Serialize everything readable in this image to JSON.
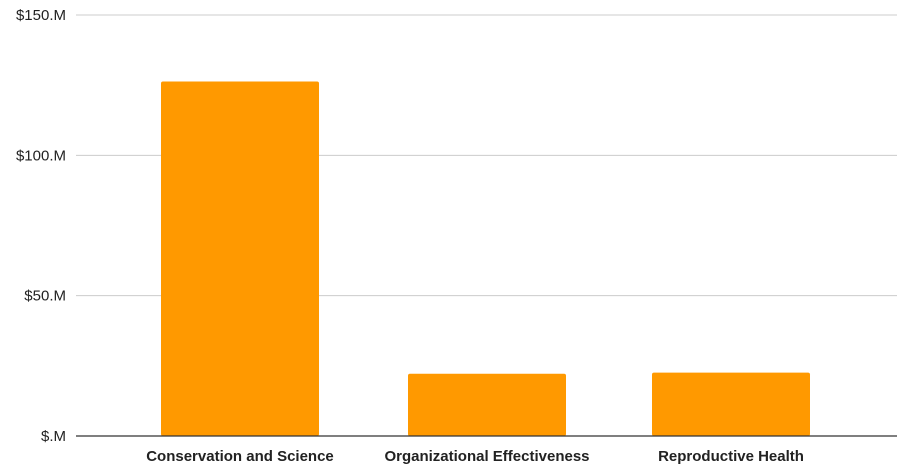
{
  "chart_data": {
    "type": "bar",
    "title": "",
    "xlabel": "",
    "ylabel": "",
    "categories": [
      "Conservation and Science",
      "Organizational Effectiveness",
      "Reproductive Health"
    ],
    "values": [
      126.3,
      22.2,
      22.6
    ],
    "ylim": [
      0,
      150
    ],
    "yticks": [
      0,
      50,
      100,
      150
    ],
    "ytick_labels": [
      "$.M",
      "$50.M",
      "$100.M",
      "$150.M"
    ],
    "grid": true,
    "legend": "none",
    "bar_color": "#FF9900",
    "grid_color": "#CCCCCC",
    "axis_color": "#333333"
  }
}
